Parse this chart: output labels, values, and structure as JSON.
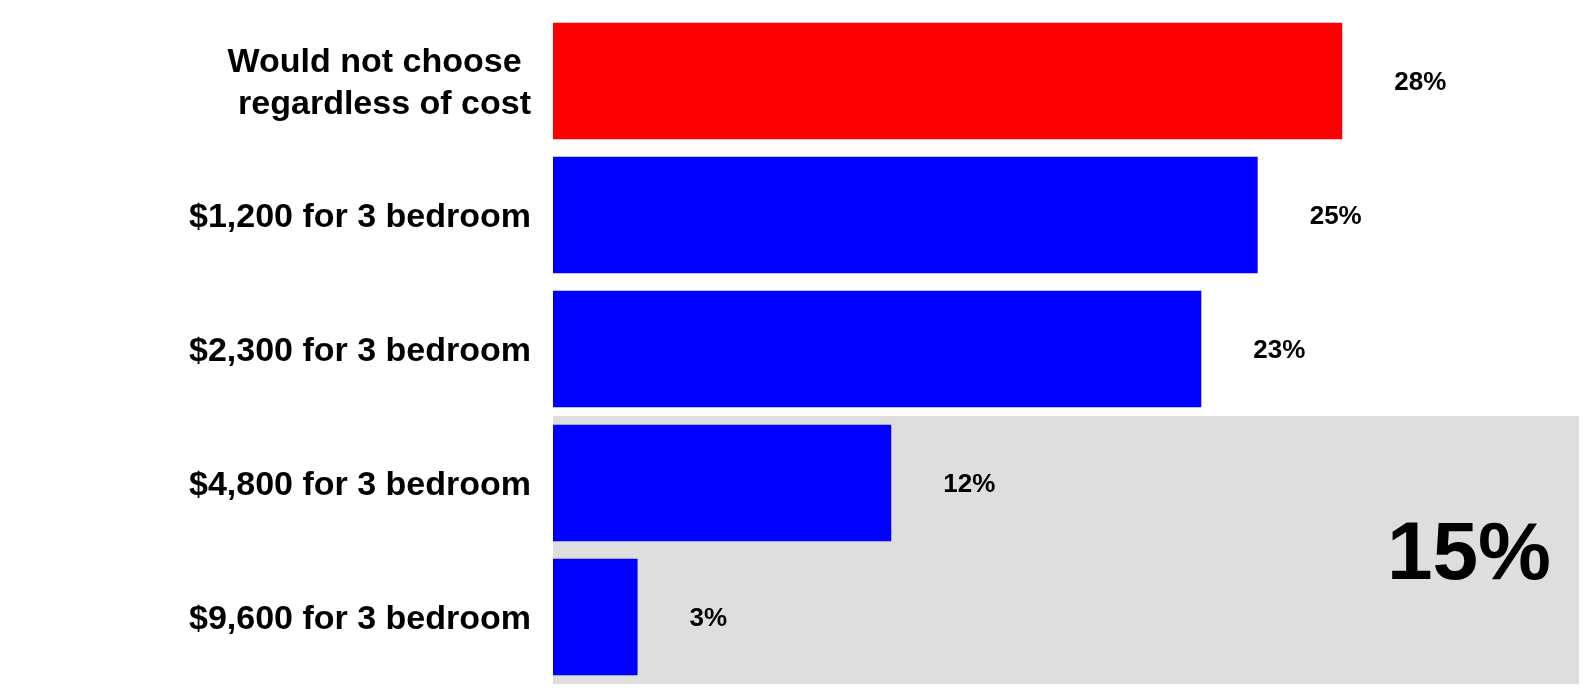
{
  "chart_data": {
    "type": "bar",
    "orientation": "horizontal",
    "categories": [
      "Would not choose regardless of cost",
      "$1,200 for 3 bedroom",
      "$2,300 for 3 bedroom",
      "$4,800 for 3 bedroom",
      "$9,600 for 3 bedroom"
    ],
    "values": [
      28,
      25,
      23,
      12,
      3
    ],
    "colors": [
      "#ff0000",
      "#0000ff",
      "#0000ff",
      "#0000ff",
      "#0000ff"
    ],
    "value_labels": [
      "28%",
      "25%",
      "23%",
      "12%",
      "3%"
    ],
    "bands": [
      {
        "axis": "y",
        "from": "$4,800 for 3 bedroom",
        "to": "$9,600 for 3 bedroom",
        "label": "15%",
        "color": "#dedede"
      }
    ]
  }
}
